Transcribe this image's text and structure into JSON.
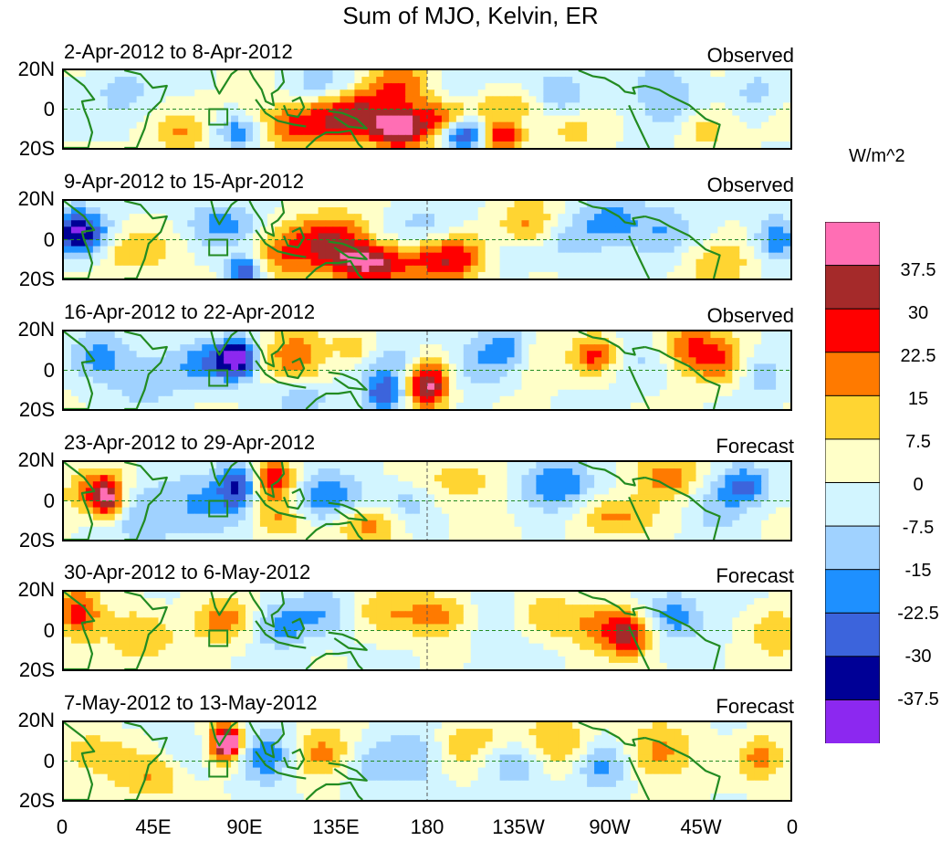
{
  "figure": {
    "title": "Sum of MJO, Kelvin, ER",
    "panels": [
      {
        "date_range": "2-Apr-2012 to 8-Apr-2012",
        "kind": "Observed"
      },
      {
        "date_range": "9-Apr-2012 to 15-Apr-2012",
        "kind": "Observed"
      },
      {
        "date_range": "16-Apr-2012 to 22-Apr-2012",
        "kind": "Observed"
      },
      {
        "date_range": "23-Apr-2012 to 29-Apr-2012",
        "kind": "Forecast"
      },
      {
        "date_range": "30-Apr-2012 to 6-May-2012",
        "kind": "Forecast"
      },
      {
        "date_range": "7-May-2012 to 13-May-2012",
        "kind": "Forecast"
      }
    ],
    "lat_labels": [
      "20N",
      "0",
      "20S"
    ],
    "lon_labels": [
      "0",
      "45E",
      "90E",
      "135E",
      "180",
      "135W",
      "90W",
      "45W",
      "0"
    ],
    "colorbar": {
      "unit": "W/m^2",
      "levels": [
        "37.5",
        "30",
        "22.5",
        "15",
        "7.5",
        "0",
        "-7.5",
        "-15",
        "-22.5",
        "-30",
        "-37.5"
      ],
      "colors": [
        "#ff6eb4",
        "#a52a2a",
        "#ff0000",
        "#ff7a00",
        "#ffd532",
        "#ffffc8",
        "#d2f5ff",
        "#a0d2ff",
        "#1e90ff",
        "#3c64dc",
        "#000096",
        "#8c28f0"
      ]
    },
    "land_color": "#228b22"
  }
}
